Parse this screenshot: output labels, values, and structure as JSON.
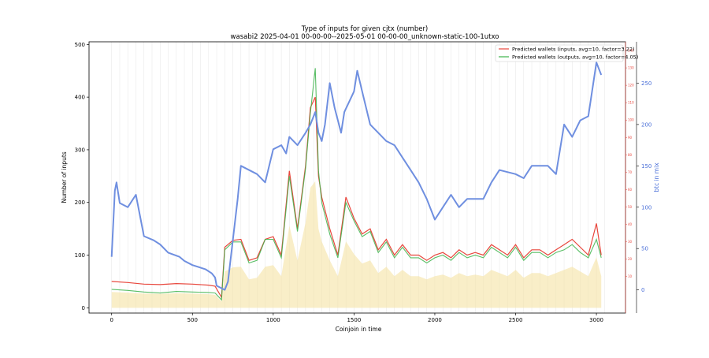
{
  "chart_data": {
    "type": "line",
    "title": "Type of inputs for given cjtx (number)",
    "subtitle": "wasabi2 2025-04-01 00-00-00--2025-05-01 00-00-00_unknown-static-100-1utxo",
    "xlabel": "Coinjoin in time",
    "ylabel": "Number of inputs",
    "y2label": "btc in mix",
    "xlim": [
      -140,
      3180
    ],
    "ylim": [
      -10,
      505
    ],
    "y2lim": [
      -28,
      300
    ],
    "y3lim": [
      -11,
      145
    ],
    "x_ticks": [
      "0",
      "500",
      "1000",
      "1500",
      "2000",
      "2500",
      "3000"
    ],
    "y_ticks": [
      "0",
      "100",
      "200",
      "300",
      "400",
      "500"
    ],
    "y2_ticks": [
      "0",
      "50",
      "100",
      "150",
      "200",
      "250"
    ],
    "y3_ticks": [
      "10",
      "20",
      "30",
      "40",
      "50",
      "60",
      "70",
      "80",
      "90",
      "100",
      "110",
      "120",
      "130",
      "140"
    ],
    "legend": {
      "placement": "top-right",
      "entries": [
        "Predicted wallets (inputs, avg=10, factor=3.22)",
        "Predicted wallets (outputs, avg=10, factor=4.05)"
      ]
    },
    "grid": "vertical lines only",
    "colors": {
      "btc_in_mix": "#6f8fe0",
      "predicted_inputs": "#e8463c",
      "predicted_outputs": "#3cb34a",
      "overlap": "#7d6526",
      "inputs_fill": "#f5e2a3",
      "right_axis_red": "#e8463c",
      "right_axis_blue": "#4a6fd8"
    },
    "series": [
      {
        "name": "Predicted wallets (inputs, avg=10, factor=3.22)",
        "x": [
          0,
          100,
          200,
          300,
          400,
          500,
          600,
          640,
          680,
          700,
          750,
          800,
          850,
          900,
          950,
          1000,
          1050,
          1100,
          1150,
          1200,
          1230,
          1260,
          1280,
          1300,
          1350,
          1400,
          1450,
          1500,
          1550,
          1600,
          1650,
          1700,
          1750,
          1800,
          1850,
          1900,
          1950,
          2000,
          2050,
          2100,
          2150,
          2200,
          2250,
          2300,
          2350,
          2400,
          2450,
          2500,
          2550,
          2600,
          2650,
          2700,
          2750,
          2800,
          2850,
          2900,
          2950,
          3000,
          3030
        ],
        "values": [
          50,
          48,
          45,
          44,
          46,
          45,
          43,
          41,
          20,
          115,
          128,
          130,
          90,
          95,
          130,
          135,
          100,
          260,
          150,
          270,
          380,
          400,
          250,
          210,
          150,
          100,
          210,
          170,
          140,
          150,
          110,
          130,
          100,
          120,
          100,
          100,
          90,
          100,
          105,
          95,
          110,
          100,
          105,
          100,
          120,
          110,
          100,
          120,
          95,
          110,
          110,
          100,
          110,
          120,
          130,
          115,
          100,
          160,
          100
        ]
      },
      {
        "name": "Predicted wallets (outputs, avg=10, factor=4.05)",
        "x": [
          0,
          100,
          200,
          300,
          400,
          500,
          600,
          640,
          680,
          700,
          750,
          800,
          850,
          900,
          950,
          1000,
          1050,
          1100,
          1150,
          1200,
          1230,
          1260,
          1280,
          1300,
          1350,
          1400,
          1450,
          1500,
          1550,
          1600,
          1650,
          1700,
          1750,
          1800,
          1850,
          1900,
          1950,
          2000,
          2050,
          2100,
          2150,
          2200,
          2250,
          2300,
          2350,
          2400,
          2450,
          2500,
          2550,
          2600,
          2650,
          2700,
          2750,
          2800,
          2850,
          2900,
          2950,
          3000,
          3030
        ],
        "values": [
          35,
          33,
          30,
          28,
          31,
          30,
          29,
          28,
          15,
          110,
          125,
          125,
          85,
          90,
          130,
          130,
          95,
          250,
          145,
          265,
          370,
          455,
          260,
          200,
          140,
          95,
          200,
          165,
          135,
          145,
          105,
          125,
          95,
          115,
          95,
          95,
          85,
          95,
          100,
          90,
          105,
          95,
          100,
          95,
          115,
          105,
          95,
          115,
          90,
          105,
          105,
          95,
          105,
          110,
          120,
          105,
          95,
          130,
          95
        ]
      },
      {
        "name": "btc in mix",
        "x": [
          0,
          20,
          30,
          50,
          100,
          150,
          190,
          200,
          260,
          300,
          350,
          420,
          450,
          500,
          580,
          620,
          640,
          650,
          700,
          720,
          780,
          800,
          900,
          950,
          1000,
          1050,
          1080,
          1100,
          1150,
          1200,
          1230,
          1260,
          1280,
          1300,
          1320,
          1350,
          1380,
          1400,
          1420,
          1440,
          1500,
          1520,
          1550,
          1600,
          1650,
          1700,
          1750,
          1800,
          1850,
          1900,
          1950,
          2000,
          2050,
          2100,
          2150,
          2200,
          2300,
          2350,
          2400,
          2500,
          2550,
          2600,
          2700,
          2750,
          2800,
          2850,
          2900,
          2950,
          3000,
          3030
        ],
        "values": [
          40,
          120,
          130,
          105,
          100,
          115,
          75,
          65,
          60,
          55,
          45,
          40,
          35,
          30,
          25,
          20,
          15,
          5,
          0,
          10,
          110,
          150,
          140,
          130,
          170,
          175,
          165,
          185,
          175,
          190,
          200,
          215,
          190,
          180,
          200,
          250,
          220,
          205,
          190,
          215,
          240,
          265,
          240,
          200,
          190,
          180,
          175,
          160,
          145,
          130,
          110,
          85,
          100,
          115,
          100,
          110,
          110,
          130,
          145,
          140,
          135,
          150,
          150,
          140,
          200,
          185,
          205,
          210,
          275,
          260
        ]
      }
    ]
  }
}
